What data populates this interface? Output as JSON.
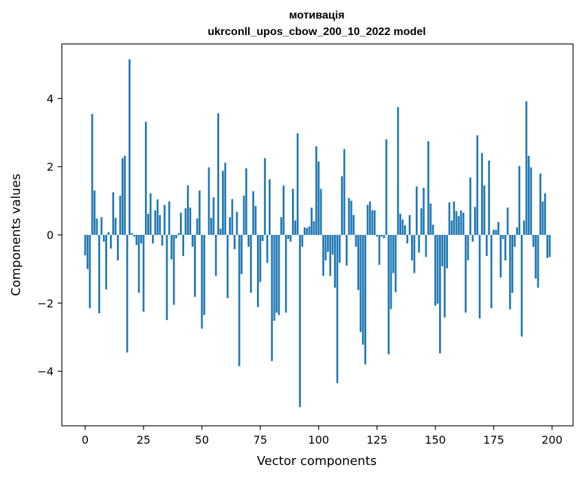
{
  "chart_data": {
    "type": "bar",
    "title": "мотивація",
    "subtitle": "ukrconll_upos_cbow_200_10_2022 model",
    "xlabel": "Vector components",
    "ylabel": "Components values",
    "xlim": [
      -10,
      209
    ],
    "ylim": [
      -5.6,
      5.6
    ],
    "xticks": [
      0,
      25,
      50,
      75,
      100,
      125,
      150,
      175,
      200
    ],
    "xtick_labels": [
      "0",
      "25",
      "50",
      "75",
      "100",
      "125",
      "150",
      "175",
      "200"
    ],
    "yticks": [
      -4,
      -2,
      0,
      2,
      4
    ],
    "ytick_labels": [
      "−4",
      "−2",
      "0",
      "2",
      "4"
    ],
    "grid": false,
    "bar_color": "#1f77b4",
    "x": [
      0,
      1,
      2,
      3,
      4,
      5,
      6,
      7,
      8,
      9,
      10,
      11,
      12,
      13,
      14,
      15,
      16,
      17,
      18,
      19,
      20,
      21,
      22,
      23,
      24,
      25,
      26,
      27,
      28,
      29,
      30,
      31,
      32,
      33,
      34,
      35,
      36,
      37,
      38,
      39,
      40,
      41,
      42,
      43,
      44,
      45,
      46,
      47,
      48,
      49,
      50,
      51,
      52,
      53,
      54,
      55,
      56,
      57,
      58,
      59,
      60,
      61,
      62,
      63,
      64,
      65,
      66,
      67,
      68,
      69,
      70,
      71,
      72,
      73,
      74,
      75,
      76,
      77,
      78,
      79,
      80,
      81,
      82,
      83,
      84,
      85,
      86,
      87,
      88,
      89,
      90,
      91,
      92,
      93,
      94,
      95,
      96,
      97,
      98,
      99,
      100,
      101,
      102,
      103,
      104,
      105,
      106,
      107,
      108,
      109,
      110,
      111,
      112,
      113,
      114,
      115,
      116,
      117,
      118,
      119,
      120,
      121,
      122,
      123,
      124,
      125,
      126,
      127,
      128,
      129,
      130,
      131,
      132,
      133,
      134,
      135,
      136,
      137,
      138,
      139,
      140,
      141,
      142,
      143,
      144,
      145,
      146,
      147,
      148,
      149,
      150,
      151,
      152,
      153,
      154,
      155,
      156,
      157,
      158,
      159,
      160,
      161,
      162,
      163,
      164,
      165,
      166,
      167,
      168,
      169,
      170,
      171,
      172,
      173,
      174,
      175,
      176,
      177,
      178,
      179,
      180,
      181,
      182,
      183,
      184,
      185,
      186,
      187,
      188,
      189,
      190,
      191,
      192,
      193,
      194,
      195,
      196,
      197,
      198,
      199
    ],
    "values": [
      -0.6,
      -1.0,
      -2.15,
      3.55,
      1.3,
      0.48,
      -2.3,
      0.52,
      -0.2,
      -1.6,
      0.08,
      -0.4,
      1.25,
      0.5,
      -0.75,
      1.15,
      2.25,
      2.32,
      -3.45,
      5.15,
      0.05,
      -0.05,
      -0.3,
      -1.7,
      -0.25,
      -2.25,
      3.32,
      0.62,
      1.22,
      -0.25,
      0.72,
      1.04,
      0.58,
      -0.32,
      0.88,
      -2.5,
      0.98,
      -0.72,
      -2.05,
      -0.1,
      0.05,
      0.65,
      -0.62,
      0.78,
      1.45,
      0.8,
      -0.35,
      -1.82,
      0.48,
      1.3,
      -2.75,
      -2.35,
      0.0,
      1.98,
      0.5,
      1.1,
      -1.2,
      3.57,
      0.18,
      1.88,
      2.12,
      -1.85,
      0.52,
      1.05,
      -0.42,
      0.68,
      -3.85,
      -1.15,
      1.15,
      1.95,
      -0.35,
      -1.7,
      1.28,
      0.85,
      -2.12,
      -1.38,
      -0.18,
      2.25,
      -0.82,
      1.63,
      -3.7,
      -2.52,
      -2.28,
      -2.35,
      0.52,
      1.45,
      -2.28,
      -0.12,
      -0.2,
      1.35,
      0.42,
      2.98,
      -5.05,
      -0.35,
      0.22,
      0.2,
      0.25,
      0.8,
      0.4,
      2.6,
      2.15,
      1.35,
      -1.2,
      -0.75,
      -0.5,
      -1.2,
      -0.58,
      -1.55,
      -4.35,
      -0.82,
      1.72,
      2.52,
      -0.9,
      1.08,
      1.0,
      0.58,
      -0.35,
      -1.62,
      -2.85,
      -3.22,
      -3.8,
      0.88,
      0.98,
      0.72,
      0.72,
      -0.05,
      -0.88,
      -0.05,
      -0.1,
      2.8,
      -3.5,
      -2.18,
      -1.12,
      -1.68,
      3.75,
      0.62,
      0.45,
      0.28,
      -0.25,
      0.58,
      -0.75,
      -1.12,
      1.42,
      -0.52,
      0.78,
      1.38,
      -0.65,
      2.75,
      0.92,
      0.3,
      -2.08,
      -2.02,
      -3.48,
      -0.92,
      -2.42,
      -0.98,
      0.95,
      0.42,
      0.98,
      0.7,
      0.55,
      0.72,
      0.65,
      -2.28,
      -0.75,
      1.68,
      -0.2,
      0.82,
      2.92,
      -2.45,
      2.4,
      1.45,
      -0.62,
      2.18,
      -2.15,
      0.15,
      0.15,
      0.38,
      -1.25,
      -0.12,
      -0.75,
      0.8,
      -2.18,
      -1.7,
      -0.35,
      0.22,
      2.02,
      -2.98,
      0.42,
      3.92,
      2.32,
      1.98,
      -0.35,
      -1.28,
      -1.55,
      1.8,
      0.98,
      1.22,
      -0.68,
      -0.65
    ]
  }
}
